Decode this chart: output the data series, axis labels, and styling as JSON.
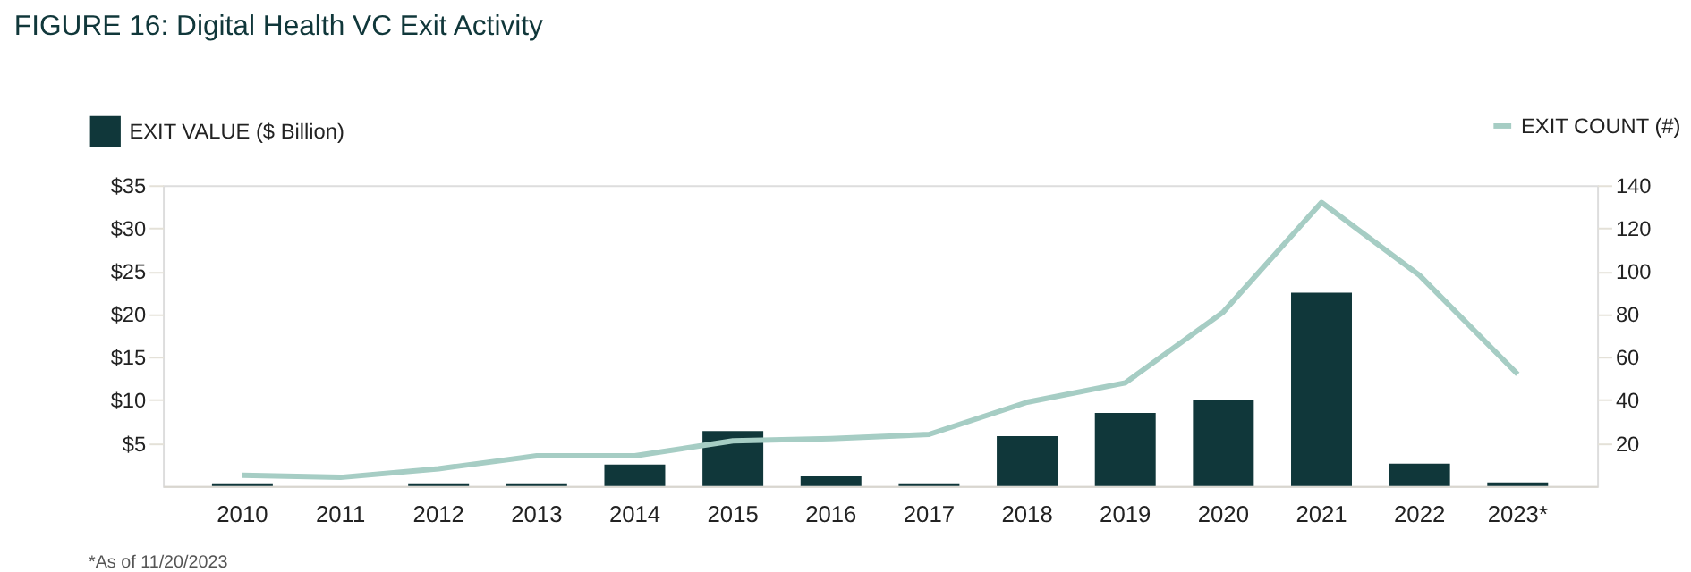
{
  "chart_data": {
    "type": "bar",
    "title": "FIGURE 16: Digital Health VC Exit Activity",
    "categories": [
      "2010",
      "2011",
      "2012",
      "2013",
      "2014",
      "2015",
      "2016",
      "2017",
      "2018",
      "2019",
      "2020",
      "2021",
      "2022",
      "2023*"
    ],
    "series": [
      {
        "name": "EXIT VALUE ($ Billion)",
        "color": "#10373a",
        "values": [
          0.3,
          0,
          0.3,
          0.3,
          2.5,
          6.4,
          1.1,
          0.3,
          5.8,
          8.5,
          10.0,
          22.5,
          2.6,
          0.4
        ]
      },
      {
        "name": "EXIT COUNT (#)",
        "type": "line",
        "axis": "y2",
        "color": "#a6cdc4",
        "values": [
          5,
          4,
          8,
          14,
          14,
          21,
          22,
          24,
          39,
          48,
          81,
          132,
          98,
          52
        ]
      }
    ],
    "ylim": [
      0,
      35
    ],
    "yticks": [
      {
        "value": 5,
        "label": "$5"
      },
      {
        "value": 10,
        "label": "$10"
      },
      {
        "value": 15,
        "label": "$15"
      },
      {
        "value": 20,
        "label": "$20"
      },
      {
        "value": 25,
        "label": "$25"
      },
      {
        "value": 30,
        "label": "$30"
      },
      {
        "value": 35,
        "label": "$35"
      }
    ],
    "y2lim": [
      0,
      140
    ],
    "y2ticks": [
      20,
      40,
      60,
      80,
      100,
      120,
      140
    ],
    "grid": false,
    "legend": "top",
    "annotations": [
      "*As of 11/20/2023"
    ]
  }
}
